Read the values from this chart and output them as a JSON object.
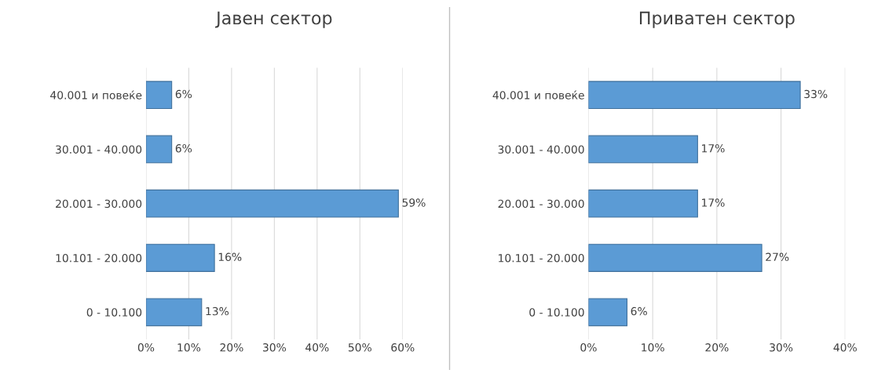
{
  "chart_data": [
    {
      "type": "bar",
      "orientation": "horizontal",
      "title": "Јавен сектор",
      "categories": [
        "40.001 и повеќе",
        "30.001 - 40.000",
        "20.001 - 30.000",
        "10.101 - 20.000",
        "0 - 10.100"
      ],
      "values": [
        6,
        6,
        59,
        16,
        13
      ],
      "value_labels": [
        "6%",
        "6%",
        "59%",
        "16%",
        "13%"
      ],
      "color": "#5b9bd5",
      "xlim": [
        0,
        60
      ],
      "xticks": [
        {
          "value": 0,
          "label": "0%"
        },
        {
          "value": 10,
          "label": "10%"
        },
        {
          "value": 20,
          "label": "20%"
        },
        {
          "value": 30,
          "label": "30%"
        },
        {
          "value": 40,
          "label": "40%"
        },
        {
          "value": 50,
          "label": "50%"
        },
        {
          "value": 60,
          "label": "60%"
        }
      ],
      "grid": "x"
    },
    {
      "type": "bar",
      "orientation": "horizontal",
      "title": "Приватен сектор",
      "categories": [
        "40.001 и повеќе",
        "30.001 - 40.000",
        "20.001 - 30.000",
        "10.101 - 20.000",
        "0 - 10.100"
      ],
      "values": [
        33,
        17,
        17,
        27,
        6
      ],
      "value_labels": [
        "33%",
        "17%",
        "17%",
        "27%",
        "6%"
      ],
      "color": "#5b9bd5",
      "xlim": [
        0,
        40
      ],
      "xticks": [
        {
          "value": 0,
          "label": "0%"
        },
        {
          "value": 10,
          "label": "10%"
        },
        {
          "value": 20,
          "label": "20%"
        },
        {
          "value": 30,
          "label": "30%"
        },
        {
          "value": 40,
          "label": "40%"
        }
      ],
      "grid": "x"
    }
  ]
}
